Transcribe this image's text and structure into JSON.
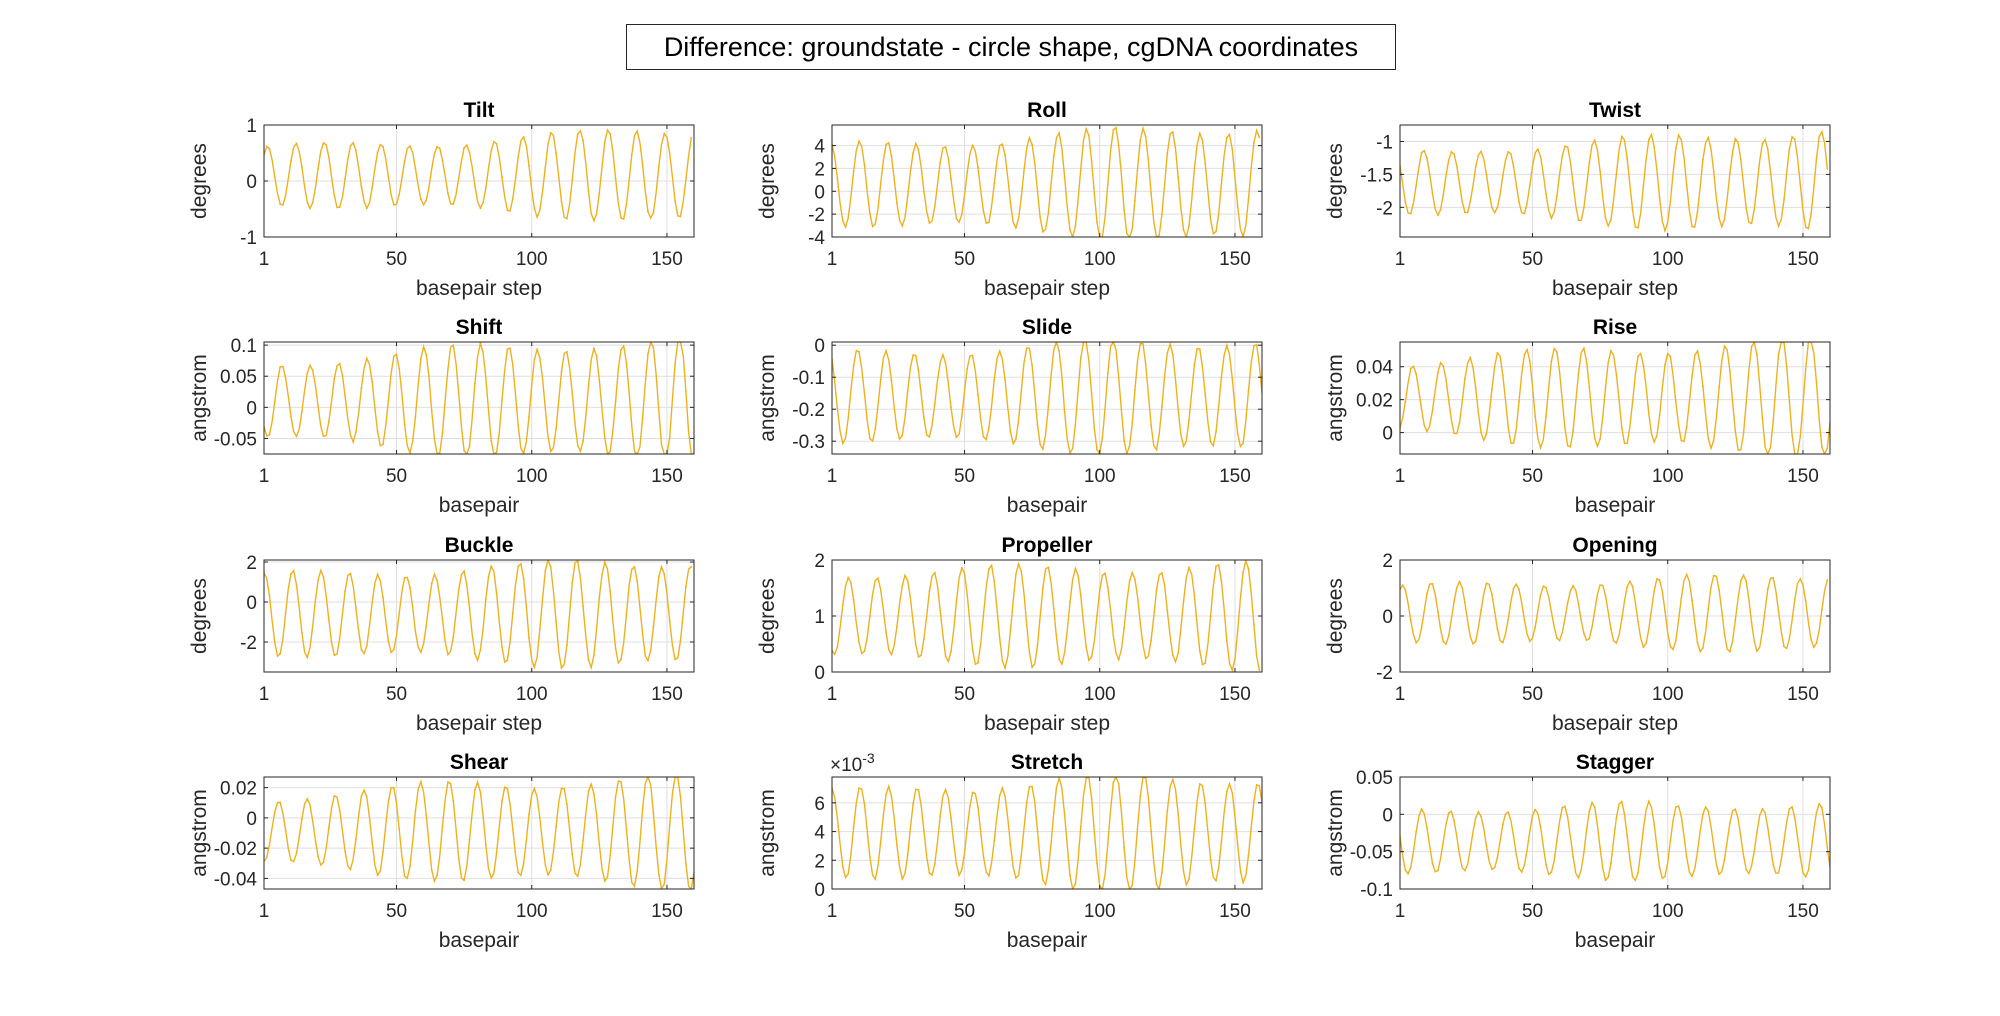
{
  "figure": {
    "title": "Difference: groundstate - circle shape, cgDNA coordinates",
    "line_color": "#EDB120"
  },
  "chart_data": [
    {
      "type": "line",
      "title": "Tilt",
      "xlabel": "basepair step",
      "ylabel": "degrees",
      "xlim": [
        1,
        160
      ],
      "ylim": [
        -1,
        1
      ],
      "xticks": [
        1,
        50,
        100,
        150
      ],
      "yticks": [
        -1,
        0,
        1
      ],
      "ytick_labels": [
        "-1",
        "0",
        "1"
      ],
      "exponent": "",
      "wave": {
        "period": 10.5,
        "n": 159,
        "amp_start": 0.5,
        "amp_mid": 0.62,
        "amp_end": 0.85,
        "offset": 0.1,
        "phase": 0.2
      }
    },
    {
      "type": "line",
      "title": "Roll",
      "xlabel": "basepair step",
      "ylabel": "degrees",
      "xlim": [
        1,
        160
      ],
      "ylim": [
        -4,
        5.8
      ],
      "xticks": [
        1,
        50,
        100,
        150
      ],
      "yticks": [
        -4,
        -2,
        0,
        2,
        4
      ],
      "ytick_labels": [
        "-4",
        "-2",
        "0",
        "2",
        "4"
      ],
      "exponent": "",
      "wave": {
        "period": 10.5,
        "n": 159,
        "amp_start": 3.3,
        "amp_mid": 4.2,
        "amp_end": 5.2,
        "offset": 0.6,
        "phase": 1.2
      }
    },
    {
      "type": "line",
      "title": "Twist",
      "xlabel": "basepair step",
      "ylabel": "degrees",
      "xlim": [
        1,
        160
      ],
      "ylim": [
        -2.45,
        -0.75
      ],
      "xticks": [
        1,
        50,
        100,
        150
      ],
      "yticks": [
        -2,
        -1.5,
        -1
      ],
      "ytick_labels": [
        "-2",
        "-1.5",
        "-1"
      ],
      "exponent": "",
      "wave": {
        "period": 10.5,
        "n": 159,
        "amp_start": 0.45,
        "amp_mid": 0.62,
        "amp_end": 0.8,
        "offset": -1.62,
        "phase": 2.0
      }
    },
    {
      "type": "line",
      "title": "Shift",
      "xlabel": "basepair",
      "ylabel": "angstrom",
      "xlim": [
        1,
        160
      ],
      "ylim": [
        -0.075,
        0.105
      ],
      "xticks": [
        1,
        50,
        100,
        150
      ],
      "yticks": [
        -0.05,
        0,
        0.05,
        0.1
      ],
      "ytick_labels": [
        "-0.05",
        "0",
        "0.05",
        "0.1"
      ],
      "exponent": "",
      "wave": {
        "period": 10.5,
        "n": 160,
        "amp_start": 0.06,
        "amp_mid": 0.085,
        "amp_end": 0.1,
        "offset": 0.01,
        "phase": 3.3
      }
    },
    {
      "type": "line",
      "title": "Slide",
      "xlabel": "basepair",
      "ylabel": "angstrom",
      "xlim": [
        1,
        160
      ],
      "ylim": [
        -0.34,
        0.01
      ],
      "xticks": [
        1,
        50,
        100,
        150
      ],
      "yticks": [
        -0.3,
        -0.2,
        -0.1,
        0
      ],
      "ytick_labels": [
        "-0.3",
        "-0.2",
        "-0.1",
        "0"
      ],
      "exponent": "",
      "wave": {
        "period": 10.5,
        "n": 160,
        "amp_start": 0.13,
        "amp_mid": 0.16,
        "amp_end": 0.18,
        "offset": -0.16,
        "phase": 1.6
      }
    },
    {
      "type": "line",
      "title": "Rise",
      "xlabel": "basepair",
      "ylabel": "angstrom",
      "xlim": [
        1,
        160
      ],
      "ylim": [
        -0.013,
        0.055
      ],
      "xticks": [
        1,
        50,
        100,
        150
      ],
      "yticks": [
        0,
        0.02,
        0.04
      ],
      "ytick_labels": [
        "0",
        "0.02",
        "0.04"
      ],
      "exponent": "",
      "wave": {
        "period": 10.5,
        "n": 160,
        "amp_start": 0.022,
        "amp_mid": 0.03,
        "amp_end": 0.034,
        "offset": 0.021,
        "phase": 4.4
      }
    },
    {
      "type": "line",
      "title": "Buckle",
      "xlabel": "basepair step",
      "ylabel": "degrees",
      "xlim": [
        1,
        160
      ],
      "ylim": [
        -3.5,
        2.1
      ],
      "xticks": [
        1,
        50,
        100,
        150
      ],
      "yticks": [
        -2,
        0,
        2
      ],
      "ytick_labels": [
        "-2",
        "0",
        "2"
      ],
      "exponent": "",
      "wave": {
        "period": 10.5,
        "n": 159,
        "amp_start": 1.9,
        "amp_mid": 2.3,
        "amp_end": 2.7,
        "offset": -0.6,
        "phase": 0.9
      }
    },
    {
      "type": "line",
      "title": "Propeller",
      "xlabel": "basepair step",
      "ylabel": "degrees",
      "xlim": [
        1,
        160
      ],
      "ylim": [
        0,
        2
      ],
      "xticks": [
        1,
        50,
        100,
        150
      ],
      "yticks": [
        0,
        1,
        2
      ],
      "ytick_labels": [
        "0",
        "1",
        "2"
      ],
      "exponent": "",
      "wave": {
        "period": 10.5,
        "n": 159,
        "amp_start": 0.75,
        "amp_mid": 0.85,
        "amp_end": 0.9,
        "offset": 1.0,
        "phase": 3.6
      }
    },
    {
      "type": "line",
      "title": "Opening",
      "xlabel": "basepair step",
      "ylabel": "degrees",
      "xlim": [
        1,
        160
      ],
      "ylim": [
        -2,
        2
      ],
      "xticks": [
        1,
        50,
        100,
        150
      ],
      "yticks": [
        -2,
        0,
        2
      ],
      "ytick_labels": [
        "-2",
        "0",
        "2"
      ],
      "exponent": "",
      "wave": {
        "period": 10.5,
        "n": 159,
        "amp_start": 0.95,
        "amp_mid": 1.15,
        "amp_end": 1.4,
        "offset": 0.1,
        "phase": 0.4
      }
    },
    {
      "type": "line",
      "title": "Shear",
      "xlabel": "basepair",
      "ylabel": "angstrom",
      "xlim": [
        1,
        160
      ],
      "ylim": [
        -0.047,
        0.027
      ],
      "xticks": [
        1,
        50,
        100,
        150
      ],
      "yticks": [
        -0.04,
        -0.02,
        0,
        0.02
      ],
      "ytick_labels": [
        "-0.04",
        "-0.02",
        "0",
        "0.02"
      ],
      "exponent": "",
      "wave": {
        "period": 10.5,
        "n": 160,
        "amp_start": 0.022,
        "amp_mid": 0.032,
        "amp_end": 0.035,
        "offset": -0.009,
        "phase": 4.0
      }
    },
    {
      "type": "line",
      "title": "Stretch",
      "xlabel": "basepair",
      "ylabel": "angstrom",
      "xlim": [
        1,
        160
      ],
      "ylim": [
        0,
        0.0078
      ],
      "xticks": [
        1,
        50,
        100,
        150
      ],
      "yticks": [
        0,
        0.002,
        0.004,
        0.006
      ],
      "ytick_labels": [
        "0",
        "2",
        "4",
        "6"
      ],
      "exponent": "×10",
      "exponent_power": "-3",
      "wave": {
        "period": 10.5,
        "n": 160,
        "amp_start": 0.0028,
        "amp_mid": 0.0036,
        "amp_end": 0.0039,
        "offset": 0.0039,
        "phase": 1.0
      }
    },
    {
      "type": "line",
      "title": "Stagger",
      "xlabel": "basepair",
      "ylabel": "angstrom",
      "xlim": [
        1,
        160
      ],
      "ylim": [
        -0.1,
        0.05
      ],
      "xticks": [
        1,
        50,
        100,
        150
      ],
      "yticks": [
        -0.1,
        -0.05,
        0,
        0.05
      ],
      "ytick_labels": [
        "-0.1",
        "-0.05",
        "0",
        "0.05"
      ],
      "exponent": "",
      "wave": {
        "period": 10.5,
        "n": 160,
        "amp_start": 0.042,
        "amp_mid": 0.048,
        "amp_end": 0.05,
        "offset": -0.036,
        "phase": 2.4
      }
    }
  ]
}
